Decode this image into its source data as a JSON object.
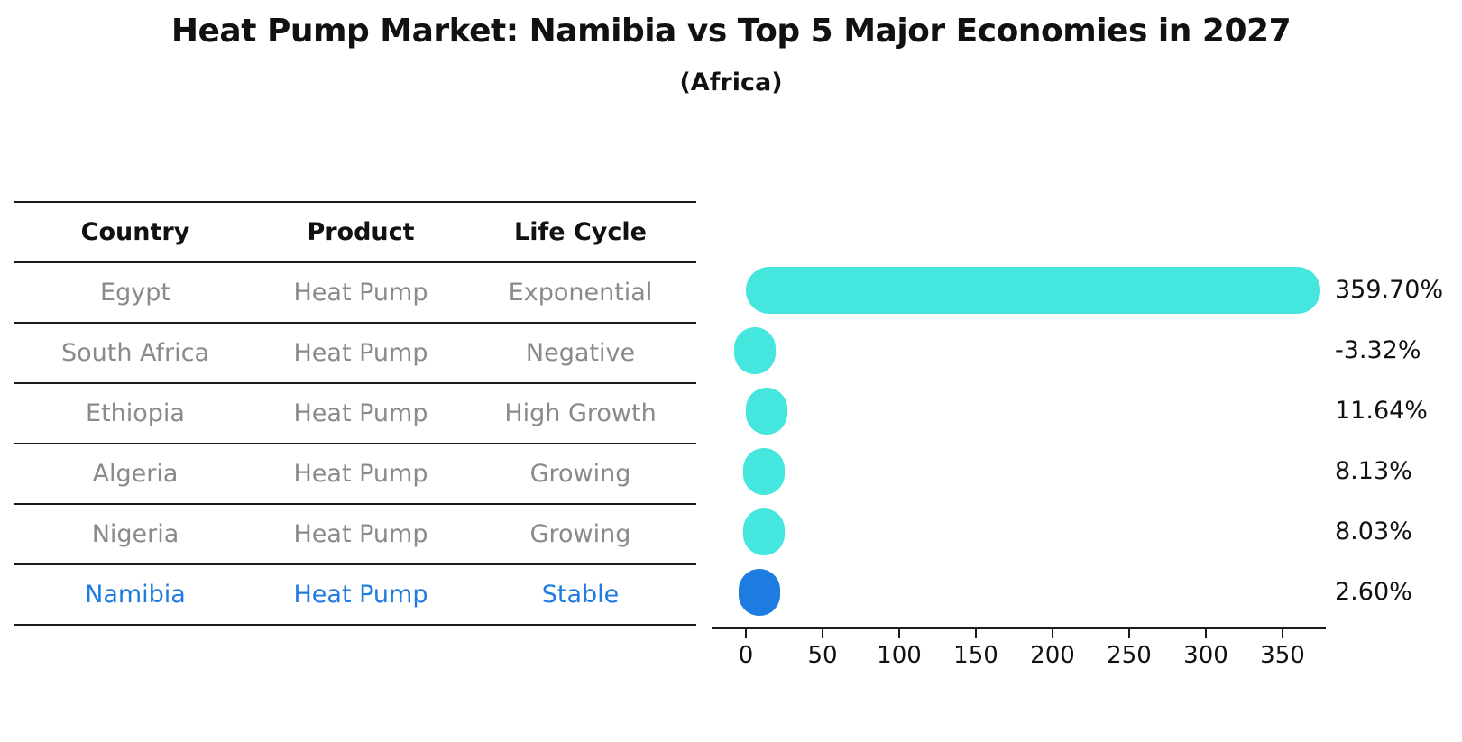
{
  "header": {
    "title": "Heat Pump Market: Namibia vs Top 5 Major Economies in 2027",
    "subtitle": "(Africa)"
  },
  "table": {
    "columns": [
      "Country",
      "Product",
      "Life Cycle"
    ],
    "rows": [
      {
        "country": "Egypt",
        "product": "Heat Pump",
        "life_cycle": "Exponential",
        "highlight": false
      },
      {
        "country": "South Africa",
        "product": "Heat Pump",
        "life_cycle": "Negative",
        "highlight": false
      },
      {
        "country": "Ethiopia",
        "product": "Heat Pump",
        "life_cycle": "High Growth",
        "highlight": false
      },
      {
        "country": "Algeria",
        "product": "Heat Pump",
        "life_cycle": "Growing",
        "highlight": false
      },
      {
        "country": "Nigeria",
        "product": "Heat Pump",
        "life_cycle": "Growing",
        "highlight": false
      },
      {
        "country": "Namibia",
        "product": "Heat Pump",
        "life_cycle": "Stable",
        "highlight": true
      }
    ]
  },
  "chart_data": {
    "type": "bar",
    "orientation": "horizontal",
    "title": "Heat Pump Market: Namibia vs Top 5 Major Economies in 2027",
    "subtitle": "(Africa)",
    "categories": [
      "Egypt",
      "South Africa",
      "Ethiopia",
      "Algeria",
      "Nigeria",
      "Namibia"
    ],
    "values": [
      359.7,
      -3.32,
      11.64,
      8.13,
      8.03,
      2.6
    ],
    "value_labels": [
      "359.70%",
      "-3.32%",
      "11.64%",
      "8.13%",
      "8.03%",
      "2.60%"
    ],
    "unit": "%",
    "xticks": [
      0,
      50,
      100,
      150,
      200,
      250,
      300,
      350
    ],
    "xlim": [
      -25,
      380
    ],
    "grid": false,
    "legend": false,
    "bar_color": "#45E6DE",
    "highlight_color": "#1E7BE0",
    "highlight_index": 5
  },
  "colors": {
    "bar_cyan": "#45E6DE",
    "bar_blue": "#1E7BE0",
    "muted_text": "#8a8a8a",
    "text": "#111111",
    "line": "#1a1a1a"
  }
}
